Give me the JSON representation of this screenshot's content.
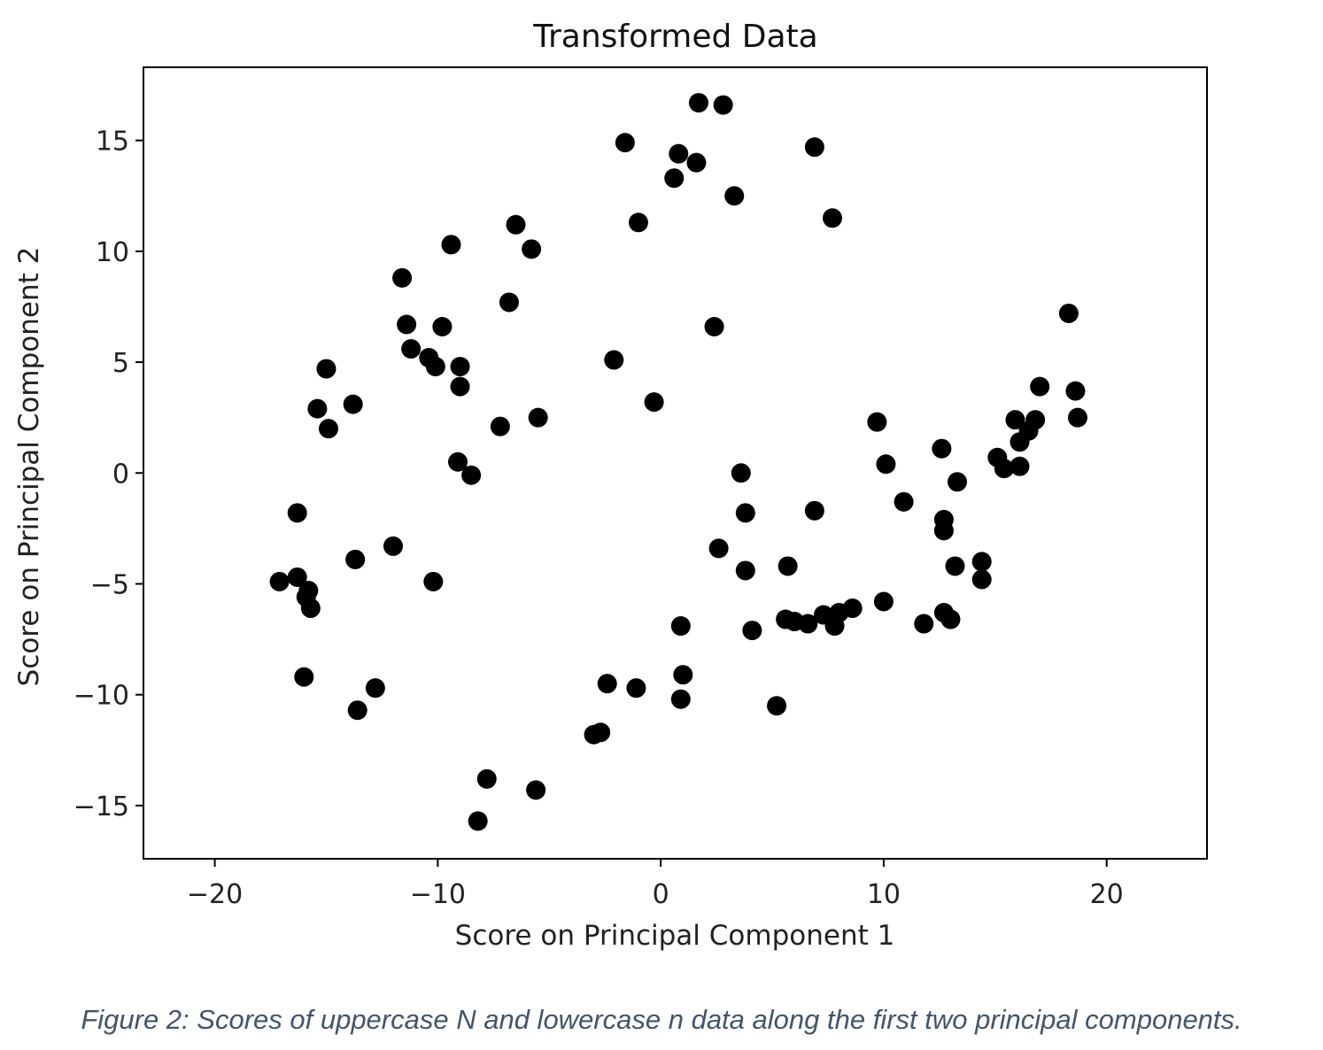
{
  "chart_data": {
    "type": "scatter",
    "title": "Transformed Data",
    "xlabel": "Score on Principal Component 1",
    "ylabel": "Score on Principal Component 2",
    "xlim": [
      -23.2,
      24.5
    ],
    "ylim": [
      -17.4,
      18.3
    ],
    "xticks": [
      -20,
      -10,
      0,
      10,
      20
    ],
    "yticks": [
      -15,
      -10,
      -5,
      0,
      5,
      10,
      15
    ],
    "xtick_labels": [
      "−20",
      "−10",
      "0",
      "10",
      "20"
    ],
    "ytick_labels": [
      "−15",
      "−10",
      "−5",
      "0",
      "5",
      "10",
      "15"
    ],
    "grid": false,
    "marker_color": "#000000",
    "points": [
      {
        "x": 1.7,
        "y": 16.7
      },
      {
        "x": 2.8,
        "y": 16.6
      },
      {
        "x": -1.6,
        "y": 14.9
      },
      {
        "x": 0.8,
        "y": 14.4
      },
      {
        "x": 1.6,
        "y": 14.0
      },
      {
        "x": 6.9,
        "y": 14.7
      },
      {
        "x": 0.6,
        "y": 13.3
      },
      {
        "x": 3.3,
        "y": 12.5
      },
      {
        "x": -1.0,
        "y": 11.3
      },
      {
        "x": 7.7,
        "y": 11.5
      },
      {
        "x": -6.5,
        "y": 11.2
      },
      {
        "x": -5.8,
        "y": 10.1
      },
      {
        "x": -9.4,
        "y": 10.3
      },
      {
        "x": -11.6,
        "y": 8.8
      },
      {
        "x": -6.8,
        "y": 7.7
      },
      {
        "x": -11.4,
        "y": 6.7
      },
      {
        "x": -9.8,
        "y": 6.6
      },
      {
        "x": 2.4,
        "y": 6.6
      },
      {
        "x": -11.2,
        "y": 5.6
      },
      {
        "x": -10.4,
        "y": 5.2
      },
      {
        "x": -10.1,
        "y": 4.8
      },
      {
        "x": -9.0,
        "y": 4.8
      },
      {
        "x": -2.1,
        "y": 5.1
      },
      {
        "x": -15.0,
        "y": 4.7
      },
      {
        "x": -9.0,
        "y": 3.9
      },
      {
        "x": -0.3,
        "y": 3.2
      },
      {
        "x": -13.8,
        "y": 3.1
      },
      {
        "x": -15.4,
        "y": 2.9
      },
      {
        "x": -5.5,
        "y": 2.5
      },
      {
        "x": -7.2,
        "y": 2.1
      },
      {
        "x": -14.9,
        "y": 2.0
      },
      {
        "x": -9.1,
        "y": 0.5
      },
      {
        "x": -8.5,
        "y": -0.1
      },
      {
        "x": 3.6,
        "y": 0.0
      },
      {
        "x": 18.3,
        "y": 7.2
      },
      {
        "x": 17.0,
        "y": 3.9
      },
      {
        "x": 18.6,
        "y": 3.7
      },
      {
        "x": 18.7,
        "y": 2.5
      },
      {
        "x": 9.7,
        "y": 2.3
      },
      {
        "x": 15.9,
        "y": 2.4
      },
      {
        "x": 16.8,
        "y": 2.4
      },
      {
        "x": 16.5,
        "y": 1.9
      },
      {
        "x": 16.1,
        "y": 1.4
      },
      {
        "x": 12.6,
        "y": 1.1
      },
      {
        "x": 15.1,
        "y": 0.7
      },
      {
        "x": 15.4,
        "y": 0.2
      },
      {
        "x": 16.1,
        "y": 0.3
      },
      {
        "x": 10.1,
        "y": 0.4
      },
      {
        "x": 13.3,
        "y": -0.4
      },
      {
        "x": 10.9,
        "y": -1.3
      },
      {
        "x": 6.9,
        "y": -1.7
      },
      {
        "x": 3.8,
        "y": -1.8
      },
      {
        "x": 12.7,
        "y": -2.1
      },
      {
        "x": 12.7,
        "y": -2.6
      },
      {
        "x": -16.3,
        "y": -1.8
      },
      {
        "x": 2.6,
        "y": -3.4
      },
      {
        "x": -12.0,
        "y": -3.3
      },
      {
        "x": -13.7,
        "y": -3.9
      },
      {
        "x": 14.4,
        "y": -4.0
      },
      {
        "x": 13.2,
        "y": -4.2
      },
      {
        "x": 5.7,
        "y": -4.2
      },
      {
        "x": 3.8,
        "y": -4.4
      },
      {
        "x": 14.4,
        "y": -4.8
      },
      {
        "x": -17.1,
        "y": -4.9
      },
      {
        "x": -16.3,
        "y": -4.7
      },
      {
        "x": -10.2,
        "y": -4.9
      },
      {
        "x": -15.8,
        "y": -5.3
      },
      {
        "x": -15.9,
        "y": -5.6
      },
      {
        "x": -15.7,
        "y": -6.1
      },
      {
        "x": 10.0,
        "y": -5.8
      },
      {
        "x": 8.6,
        "y": -6.1
      },
      {
        "x": 8.0,
        "y": -6.3
      },
      {
        "x": 7.3,
        "y": -6.4
      },
      {
        "x": 12.7,
        "y": -6.3
      },
      {
        "x": 13.0,
        "y": -6.6
      },
      {
        "x": 5.6,
        "y": -6.6
      },
      {
        "x": 6.0,
        "y": -6.7
      },
      {
        "x": 6.6,
        "y": -6.8
      },
      {
        "x": 7.8,
        "y": -6.9
      },
      {
        "x": 11.8,
        "y": -6.8
      },
      {
        "x": 0.9,
        "y": -6.9
      },
      {
        "x": 4.1,
        "y": -7.1
      },
      {
        "x": -16.0,
        "y": -9.2
      },
      {
        "x": 1.0,
        "y": -9.1
      },
      {
        "x": -2.4,
        "y": -9.5
      },
      {
        "x": -1.1,
        "y": -9.7
      },
      {
        "x": -12.8,
        "y": -9.7
      },
      {
        "x": 0.9,
        "y": -10.2
      },
      {
        "x": -13.6,
        "y": -10.7
      },
      {
        "x": 5.2,
        "y": -10.5
      },
      {
        "x": -3.0,
        "y": -11.8
      },
      {
        "x": -2.7,
        "y": -11.7
      },
      {
        "x": -7.8,
        "y": -13.8
      },
      {
        "x": -5.6,
        "y": -14.3
      },
      {
        "x": -8.2,
        "y": -15.7
      }
    ]
  },
  "caption": "Figure 2: Scores of uppercase N and lowercase n data along the first two principal components."
}
